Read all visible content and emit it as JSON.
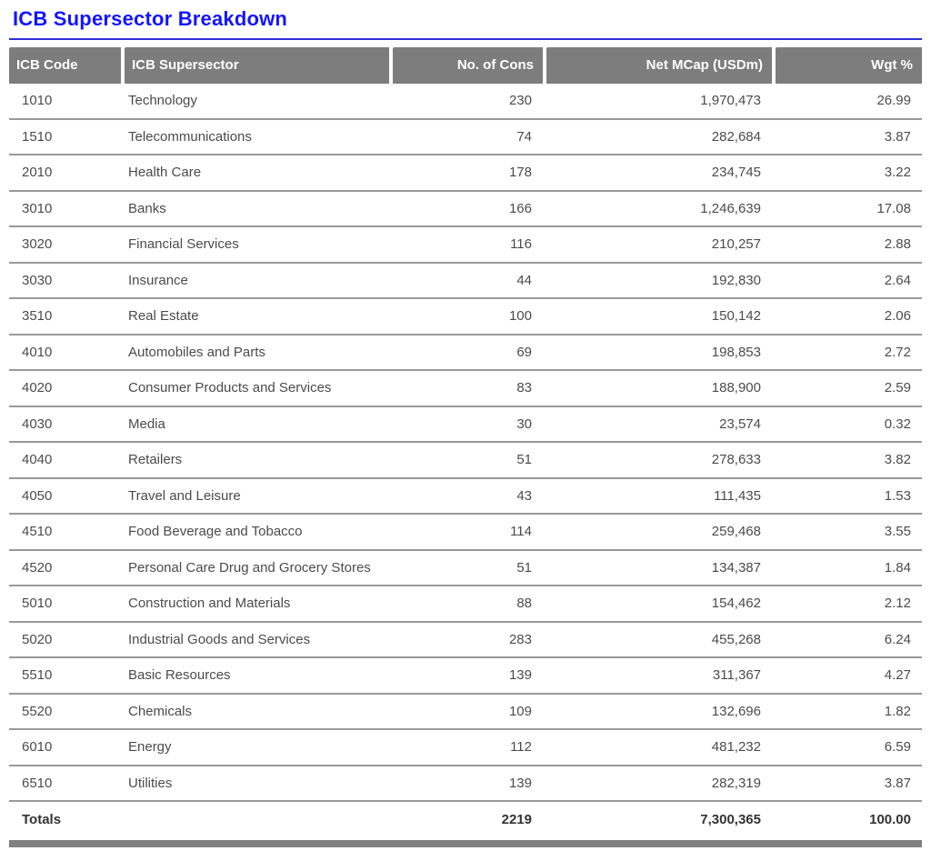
{
  "page_title": "ICB Supersector Breakdown",
  "table": {
    "columns": [
      "ICB Code",
      "ICB Supersector",
      "No. of Cons",
      "Net MCap (USDm)",
      "Wgt %"
    ],
    "rows": [
      {
        "code": "1010",
        "name": "Technology",
        "cons": "230",
        "mcap": "1,970,473",
        "wgt": "26.99"
      },
      {
        "code": "1510",
        "name": "Telecommunications",
        "cons": "74",
        "mcap": "282,684",
        "wgt": "3.87"
      },
      {
        "code": "2010",
        "name": "Health Care",
        "cons": "178",
        "mcap": "234,745",
        "wgt": "3.22"
      },
      {
        "code": "3010",
        "name": "Banks",
        "cons": "166",
        "mcap": "1,246,639",
        "wgt": "17.08"
      },
      {
        "code": "3020",
        "name": "Financial Services",
        "cons": "116",
        "mcap": "210,257",
        "wgt": "2.88"
      },
      {
        "code": "3030",
        "name": "Insurance",
        "cons": "44",
        "mcap": "192,830",
        "wgt": "2.64"
      },
      {
        "code": "3510",
        "name": "Real Estate",
        "cons": "100",
        "mcap": "150,142",
        "wgt": "2.06"
      },
      {
        "code": "4010",
        "name": "Automobiles and Parts",
        "cons": "69",
        "mcap": "198,853",
        "wgt": "2.72"
      },
      {
        "code": "4020",
        "name": "Consumer Products and Services",
        "cons": "83",
        "mcap": "188,900",
        "wgt": "2.59"
      },
      {
        "code": "4030",
        "name": "Media",
        "cons": "30",
        "mcap": "23,574",
        "wgt": "0.32"
      },
      {
        "code": "4040",
        "name": "Retailers",
        "cons": "51",
        "mcap": "278,633",
        "wgt": "3.82"
      },
      {
        "code": "4050",
        "name": "Travel and Leisure",
        "cons": "43",
        "mcap": "111,435",
        "wgt": "1.53"
      },
      {
        "code": "4510",
        "name": "Food Beverage and Tobacco",
        "cons": "114",
        "mcap": "259,468",
        "wgt": "3.55"
      },
      {
        "code": "4520",
        "name": "Personal Care Drug and Grocery Stores",
        "cons": "51",
        "mcap": "134,387",
        "wgt": "1.84"
      },
      {
        "code": "5010",
        "name": "Construction and Materials",
        "cons": "88",
        "mcap": "154,462",
        "wgt": "2.12"
      },
      {
        "code": "5020",
        "name": "Industrial Goods and Services",
        "cons": "283",
        "mcap": "455,268",
        "wgt": "6.24"
      },
      {
        "code": "5510",
        "name": "Basic Resources",
        "cons": "139",
        "mcap": "311,367",
        "wgt": "4.27"
      },
      {
        "code": "5520",
        "name": "Chemicals",
        "cons": "109",
        "mcap": "132,696",
        "wgt": "1.82"
      },
      {
        "code": "6010",
        "name": "Energy",
        "cons": "112",
        "mcap": "481,232",
        "wgt": "6.59"
      },
      {
        "code": "6510",
        "name": "Utilities",
        "cons": "139",
        "mcap": "282,319",
        "wgt": "3.87"
      }
    ],
    "totals": {
      "label": "Totals",
      "cons": "2219",
      "mcap": "7,300,365",
      "wgt": "100.00"
    }
  },
  "colors": {
    "title_blue": "#1414ff",
    "rule_blue": "#2d2dd8",
    "header_gray": "#7d7d7d",
    "separator_gray": "#999999",
    "bottom_bar_gray": "#808080",
    "body_text": "#4b4b4b",
    "totals_text": "#333333"
  }
}
